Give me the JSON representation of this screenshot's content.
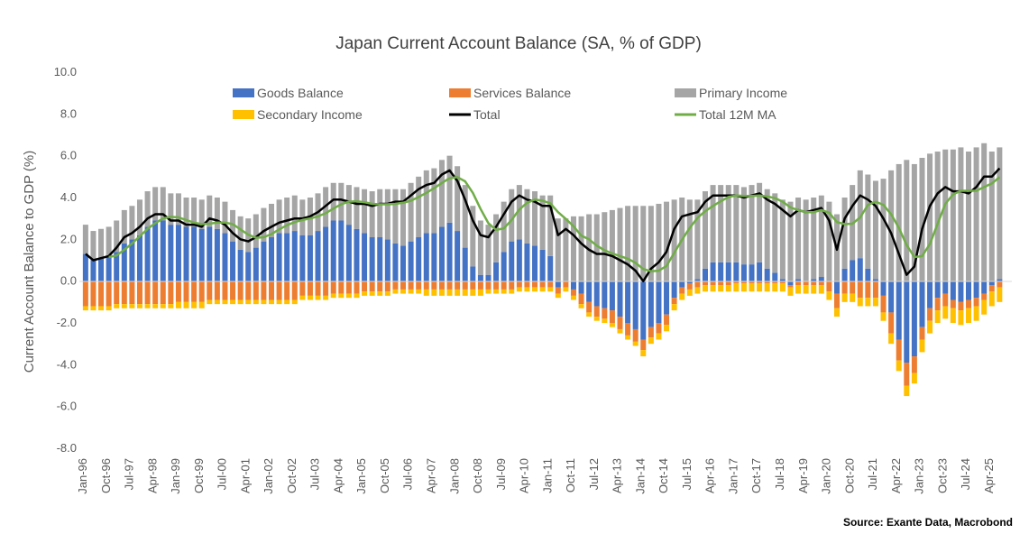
{
  "chart_data": {
    "type": "bar",
    "subtype": "stacked bar with lines",
    "title": "Japan Current Account Balance (SA, % of GDP)",
    "ylabel": "Current Account Balance to GDP (%)",
    "xlabel": "",
    "ylim": [
      -8,
      10
    ],
    "yticks": [
      "10.0",
      "8.0",
      "6.0",
      "4.0",
      "2.0",
      "0.0",
      "-2.0",
      "-4.0",
      "-6.0",
      "-8.0"
    ],
    "xticks": [
      "Jan-96",
      "Oct-96",
      "Jul-97",
      "Apr-98",
      "Jan-99",
      "Oct-99",
      "Jul-00",
      "Apr-01",
      "Jan-02",
      "Oct-02",
      "Jul-03",
      "Apr-04",
      "Jan-05",
      "Oct-05",
      "Jul-06",
      "Apr-07",
      "Jan-08",
      "Oct-08",
      "Jul-09",
      "Apr-10",
      "Jan-11",
      "Oct-11",
      "Jul-12",
      "Apr-13",
      "Jan-14",
      "Oct-14",
      "Jul-15",
      "Apr-16",
      "Jan-17",
      "Oct-17",
      "Jul-18",
      "Apr-19",
      "Jan-20",
      "Oct-20",
      "Jul-21",
      "Apr-22",
      "Jan-23",
      "Oct-23",
      "Jul-24",
      "Apr-25"
    ],
    "period": "quarterly approximation, Q1-1996 to Q3-2025",
    "grid": false,
    "legend_placement": "top",
    "source": "Source: Exante Data, Macrobond",
    "series": [
      {
        "name": "Goods Balance",
        "color": "#4472C4",
        "kind": "bar",
        "values": [
          1.3,
          1.0,
          1.1,
          1.2,
          1.4,
          1.8,
          2.0,
          2.2,
          2.6,
          2.9,
          2.9,
          2.7,
          2.7,
          2.6,
          2.6,
          2.5,
          2.6,
          2.5,
          2.3,
          1.9,
          1.5,
          1.4,
          1.6,
          1.9,
          2.1,
          2.3,
          2.3,
          2.4,
          2.2,
          2.2,
          2.4,
          2.6,
          2.9,
          2.9,
          2.7,
          2.5,
          2.3,
          2.1,
          2.1,
          2.0,
          1.8,
          1.7,
          1.9,
          2.1,
          2.3,
          2.3,
          2.6,
          2.8,
          2.4,
          1.6,
          0.7,
          0.3,
          0.3,
          0.9,
          1.4,
          1.9,
          2.0,
          1.8,
          1.7,
          1.5,
          1.2,
          -0.3,
          0.0,
          -0.4,
          -0.6,
          -1.0,
          -1.2,
          -1.3,
          -1.4,
          -1.7,
          -2.0,
          -2.3,
          -2.8,
          -2.2,
          -2.0,
          -1.6,
          -0.8,
          -0.3,
          -0.1,
          0.1,
          0.6,
          0.9,
          0.9,
          0.9,
          0.9,
          0.8,
          0.8,
          0.9,
          0.6,
          0.4,
          0.1,
          -0.2,
          0.1,
          0.0,
          0.1,
          0.2,
          0.0,
          -0.6,
          0.6,
          1.0,
          1.1,
          0.6,
          0.1,
          -0.7,
          -1.5,
          -2.8,
          -3.9,
          -3.6,
          -2.2,
          -1.3,
          -0.8,
          -0.6,
          -0.9,
          -1.0,
          -0.9,
          -0.8,
          -0.6,
          -0.2,
          0.1
        ]
      },
      {
        "name": "Services Balance",
        "color": "#ED7D31",
        "kind": "bar",
        "values": [
          -1.2,
          -1.2,
          -1.2,
          -1.2,
          -1.1,
          -1.1,
          -1.1,
          -1.1,
          -1.1,
          -1.1,
          -1.1,
          -1.1,
          -1.0,
          -1.0,
          -1.0,
          -1.0,
          -0.9,
          -0.9,
          -0.9,
          -0.9,
          -0.9,
          -0.9,
          -0.9,
          -0.9,
          -0.9,
          -0.9,
          -0.9,
          -0.9,
          -0.7,
          -0.7,
          -0.7,
          -0.7,
          -0.6,
          -0.6,
          -0.6,
          -0.6,
          -0.5,
          -0.5,
          -0.5,
          -0.5,
          -0.4,
          -0.4,
          -0.4,
          -0.4,
          -0.4,
          -0.4,
          -0.4,
          -0.4,
          -0.4,
          -0.4,
          -0.4,
          -0.4,
          -0.4,
          -0.4,
          -0.4,
          -0.4,
          -0.3,
          -0.3,
          -0.3,
          -0.3,
          -0.3,
          -0.3,
          -0.3,
          -0.3,
          -0.5,
          -0.5,
          -0.5,
          -0.5,
          -0.6,
          -0.6,
          -0.6,
          -0.6,
          -0.5,
          -0.5,
          -0.5,
          -0.5,
          -0.3,
          -0.3,
          -0.3,
          -0.3,
          -0.2,
          -0.2,
          -0.2,
          -0.2,
          -0.1,
          -0.1,
          -0.1,
          -0.1,
          -0.1,
          -0.1,
          -0.1,
          -0.1,
          -0.2,
          -0.2,
          -0.2,
          -0.2,
          -0.5,
          -0.7,
          -0.6,
          -0.6,
          -0.8,
          -0.8,
          -0.8,
          -0.8,
          -1.0,
          -1.0,
          -1.1,
          -0.8,
          -0.6,
          -0.6,
          -0.6,
          -0.6,
          -0.4,
          -0.4,
          -0.4,
          -0.4,
          -0.3,
          -0.3,
          -0.3
        ]
      },
      {
        "name": "Primary Income",
        "color": "#A5A5A5",
        "kind": "bar",
        "values": [
          1.4,
          1.4,
          1.4,
          1.4,
          1.5,
          1.6,
          1.6,
          1.7,
          1.7,
          1.6,
          1.6,
          1.5,
          1.5,
          1.4,
          1.4,
          1.4,
          1.5,
          1.5,
          1.5,
          1.5,
          1.6,
          1.6,
          1.6,
          1.6,
          1.6,
          1.6,
          1.7,
          1.7,
          1.7,
          1.8,
          1.8,
          1.9,
          1.8,
          1.8,
          1.9,
          2.0,
          2.1,
          2.2,
          2.3,
          2.4,
          2.6,
          2.7,
          2.8,
          2.9,
          3.0,
          3.1,
          3.2,
          3.2,
          3.1,
          3.0,
          2.9,
          2.6,
          2.4,
          2.3,
          2.4,
          2.5,
          2.6,
          2.6,
          2.6,
          2.6,
          2.9,
          3.0,
          3.0,
          3.1,
          3.1,
          3.2,
          3.2,
          3.3,
          3.4,
          3.5,
          3.6,
          3.6,
          3.6,
          3.6,
          3.7,
          3.8,
          3.9,
          4.0,
          3.9,
          3.8,
          3.7,
          3.7,
          3.7,
          3.7,
          3.7,
          3.7,
          3.8,
          3.8,
          3.8,
          3.8,
          3.8,
          3.8,
          3.9,
          3.9,
          3.9,
          3.9,
          3.8,
          3.2,
          3.4,
          3.6,
          4.2,
          4.5,
          4.7,
          4.9,
          5.3,
          5.6,
          5.8,
          5.6,
          5.9,
          6.1,
          6.2,
          6.3,
          6.3,
          6.4,
          6.2,
          6.4,
          6.6,
          6.2,
          6.3
        ]
      },
      {
        "name": "Secondary Income",
        "color": "#FFC000",
        "kind": "bar",
        "values": [
          -0.2,
          -0.2,
          -0.2,
          -0.2,
          -0.2,
          -0.2,
          -0.2,
          -0.2,
          -0.2,
          -0.2,
          -0.2,
          -0.2,
          -0.3,
          -0.3,
          -0.3,
          -0.3,
          -0.2,
          -0.2,
          -0.2,
          -0.2,
          -0.2,
          -0.2,
          -0.2,
          -0.2,
          -0.2,
          -0.2,
          -0.2,
          -0.2,
          -0.2,
          -0.2,
          -0.2,
          -0.2,
          -0.2,
          -0.2,
          -0.2,
          -0.2,
          -0.2,
          -0.2,
          -0.2,
          -0.2,
          -0.2,
          -0.2,
          -0.2,
          -0.2,
          -0.3,
          -0.3,
          -0.3,
          -0.3,
          -0.3,
          -0.3,
          -0.3,
          -0.3,
          -0.2,
          -0.2,
          -0.2,
          -0.2,
          -0.2,
          -0.2,
          -0.2,
          -0.2,
          -0.2,
          -0.2,
          -0.2,
          -0.2,
          -0.2,
          -0.2,
          -0.2,
          -0.2,
          -0.2,
          -0.2,
          -0.2,
          -0.2,
          -0.3,
          -0.3,
          -0.3,
          -0.3,
          -0.3,
          -0.3,
          -0.3,
          -0.3,
          -0.3,
          -0.3,
          -0.3,
          -0.3,
          -0.4,
          -0.4,
          -0.4,
          -0.4,
          -0.4,
          -0.4,
          -0.4,
          -0.4,
          -0.4,
          -0.4,
          -0.4,
          -0.4,
          -0.4,
          -0.4,
          -0.4,
          -0.4,
          -0.4,
          -0.4,
          -0.4,
          -0.4,
          -0.5,
          -0.5,
          -0.5,
          -0.5,
          -0.6,
          -0.6,
          -0.6,
          -0.6,
          -0.7,
          -0.7,
          -0.7,
          -0.7,
          -0.7,
          -0.7,
          -0.7
        ]
      },
      {
        "name": "Total",
        "color": "#000000",
        "kind": "line",
        "derived": "sum of components"
      },
      {
        "name": "Total 12M MA",
        "color": "#70AD47",
        "kind": "line",
        "derived": "12-month moving average of Total"
      }
    ]
  }
}
